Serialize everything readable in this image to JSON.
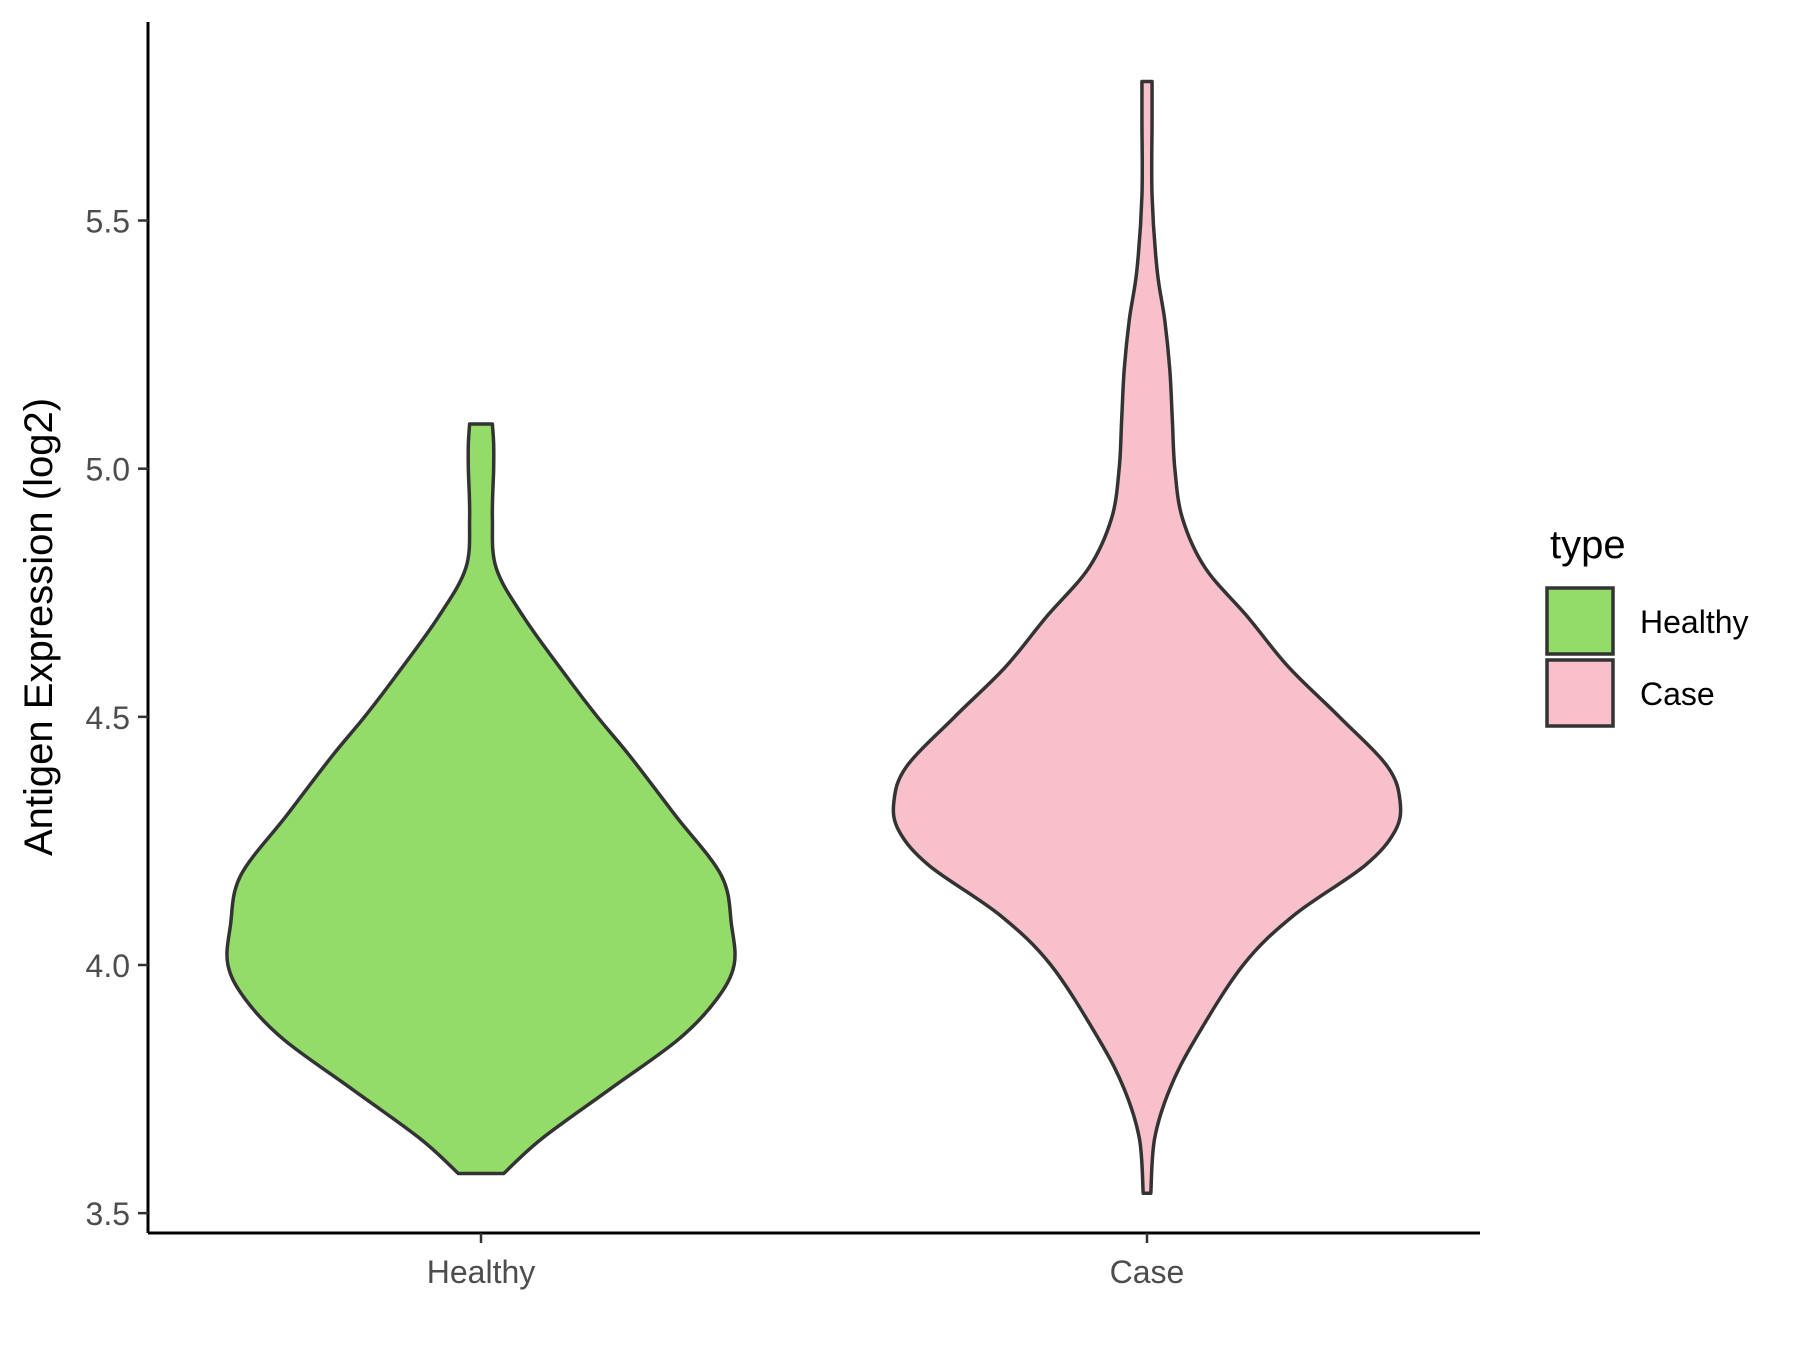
{
  "chart_data": {
    "type": "violin",
    "ylabel": "Antigen Expression (log2)",
    "xlabel": "",
    "ylim": [
      3.46,
      5.9
    ],
    "yticks": [
      "3.5",
      "4.0",
      "4.5",
      "5.0",
      "5.5"
    ],
    "categories": [
      "Healthy",
      "Case"
    ],
    "legend": {
      "title": "type",
      "placement": "right",
      "entries": [
        "Healthy",
        "Case"
      ]
    },
    "colors": {
      "Healthy": "#93dc6a",
      "Case": "#f8c0cb",
      "outline": "#333333"
    },
    "series": [
      {
        "name": "Healthy",
        "min": 3.58,
        "max": 5.09,
        "density": [
          [
            3.58,
            0.09
          ],
          [
            3.65,
            0.24
          ],
          [
            3.75,
            0.51
          ],
          [
            3.85,
            0.78
          ],
          [
            3.93,
            0.93
          ],
          [
            4.0,
            1.0
          ],
          [
            4.08,
            0.99
          ],
          [
            4.18,
            0.95
          ],
          [
            4.3,
            0.77
          ],
          [
            4.42,
            0.59
          ],
          [
            4.5,
            0.46
          ],
          [
            4.58,
            0.34
          ],
          [
            4.7,
            0.17
          ],
          [
            4.8,
            0.06
          ],
          [
            4.9,
            0.045
          ],
          [
            5.0,
            0.05
          ],
          [
            5.05,
            0.05
          ],
          [
            5.09,
            0.045
          ]
        ]
      },
      {
        "name": "Case",
        "min": 3.54,
        "max": 5.78,
        "density": [
          [
            3.54,
            0.015
          ],
          [
            3.65,
            0.03
          ],
          [
            3.75,
            0.09
          ],
          [
            3.85,
            0.19
          ],
          [
            4.0,
            0.38
          ],
          [
            4.1,
            0.58
          ],
          [
            4.2,
            0.86
          ],
          [
            4.27,
            0.98
          ],
          [
            4.33,
            1.0
          ],
          [
            4.4,
            0.95
          ],
          [
            4.5,
            0.76
          ],
          [
            4.6,
            0.56
          ],
          [
            4.7,
            0.4
          ],
          [
            4.8,
            0.23
          ],
          [
            4.9,
            0.14
          ],
          [
            5.0,
            0.11
          ],
          [
            5.1,
            0.1
          ],
          [
            5.2,
            0.09
          ],
          [
            5.3,
            0.07
          ],
          [
            5.4,
            0.04
          ],
          [
            5.55,
            0.02
          ],
          [
            5.7,
            0.02
          ],
          [
            5.78,
            0.02
          ]
        ]
      }
    ]
  }
}
